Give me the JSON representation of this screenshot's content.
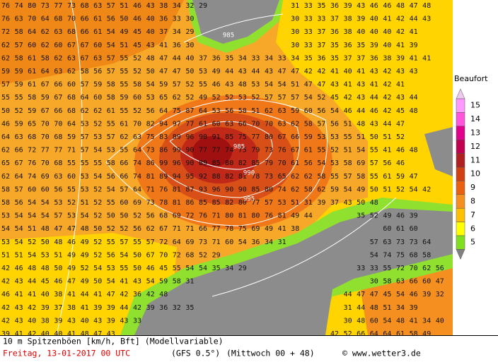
{
  "grid": {
    "rows": [
      [
        76,
        74,
        80,
        73,
        77,
        73,
        68,
        63,
        57,
        51,
        46,
        43,
        38,
        34,
        32,
        29,
        null,
        null,
        null,
        null,
        null,
        null,
        31,
        33,
        35,
        36,
        39,
        43,
        46,
        46,
        48,
        47,
        48
      ],
      [
        76,
        63,
        70,
        64,
        68,
        70,
        66,
        61,
        56,
        50,
        46,
        40,
        36,
        33,
        30,
        null,
        null,
        null,
        null,
        null,
        null,
        null,
        30,
        33,
        33,
        37,
        38,
        39,
        40,
        41,
        42,
        44,
        43
      ],
      [
        72,
        58,
        64,
        62,
        63,
        68,
        66,
        61,
        54,
        49,
        45,
        40,
        37,
        34,
        29,
        null,
        null,
        null,
        null,
        null,
        null,
        null,
        30,
        33,
        37,
        36,
        38,
        40,
        40,
        40,
        42,
        41
      ],
      [
        62,
        57,
        60,
        62,
        60,
        67,
        67,
        60,
        54,
        51,
        45,
        43,
        41,
        36,
        30,
        null,
        null,
        null,
        null,
        null,
        null,
        null,
        30,
        33,
        37,
        35,
        36,
        35,
        39,
        40,
        41,
        39
      ],
      [
        62,
        58,
        61,
        58,
        62,
        63,
        67,
        63,
        57,
        55,
        52,
        48,
        47,
        44,
        40,
        37,
        36,
        35,
        34,
        33,
        34,
        33,
        34,
        35,
        36,
        35,
        37,
        37,
        36,
        38,
        39,
        41,
        41
      ],
      [
        59,
        59,
        61,
        64,
        63,
        62,
        58,
        56,
        57,
        55,
        52,
        50,
        47,
        47,
        50,
        53,
        49,
        44,
        43,
        44,
        43,
        47,
        47,
        42,
        42,
        41,
        40,
        41,
        43,
        42,
        43,
        43
      ],
      [
        57,
        59,
        61,
        67,
        66,
        60,
        57,
        59,
        58,
        55,
        58,
        54,
        59,
        57,
        52,
        55,
        46,
        43,
        48,
        53,
        54,
        54,
        51,
        47,
        47,
        43,
        41,
        43,
        41,
        42,
        41
      ],
      [
        55,
        55,
        58,
        59,
        67,
        68,
        64,
        60,
        58,
        59,
        60,
        53,
        65,
        62,
        52,
        49,
        52,
        52,
        53,
        52,
        57,
        57,
        57,
        54,
        52,
        45,
        42,
        43,
        44,
        42,
        43,
        44
      ],
      [
        50,
        52,
        59,
        67,
        66,
        68,
        62,
        62,
        61,
        55,
        52,
        56,
        64,
        75,
        87,
        64,
        53,
        56,
        58,
        51,
        62,
        63,
        59,
        60,
        56,
        54,
        46,
        44,
        46,
        42,
        45,
        48
      ],
      [
        46,
        59,
        65,
        70,
        70,
        64,
        53,
        52,
        55,
        61,
        70,
        82,
        94,
        97,
        77,
        61,
        60,
        63,
        66,
        70,
        70,
        63,
        62,
        58,
        57,
        56,
        51,
        48,
        43,
        44,
        47
      ],
      [
        64,
        63,
        68,
        70,
        68,
        59,
        57,
        53,
        57,
        62,
        63,
        75,
        83,
        89,
        96,
        90,
        91,
        85,
        75,
        77,
        80,
        67,
        66,
        59,
        53,
        53,
        55,
        51,
        50,
        51,
        52
      ],
      [
        62,
        66,
        72,
        77,
        77,
        71,
        57,
        54,
        53,
        55,
        64,
        73,
        86,
        99,
        90,
        77,
        77,
        74,
        75,
        79,
        73,
        76,
        67,
        61,
        55,
        52,
        51,
        54,
        55,
        41,
        46,
        48
      ],
      [
        65,
        67,
        76,
        70,
        68,
        55,
        55,
        55,
        58,
        66,
        74,
        86,
        99,
        96,
        90,
        89,
        85,
        80,
        82,
        85,
        79,
        70,
        61,
        56,
        54,
        53,
        58,
        69,
        57,
        56,
        46
      ],
      [
        62,
        64,
        74,
        69,
        63,
        60,
        53,
        54,
        56,
        66,
        74,
        81,
        89,
        94,
        95,
        92,
        88,
        82,
        81,
        78,
        73,
        65,
        62,
        62,
        58,
        55,
        57,
        58,
        55,
        61,
        59,
        47
      ],
      [
        58,
        57,
        60,
        60,
        56,
        55,
        53,
        52,
        54,
        57,
        64,
        71,
        76,
        81,
        87,
        93,
        96,
        90,
        90,
        85,
        80,
        74,
        62,
        58,
        62,
        59,
        54,
        49,
        50,
        51,
        52,
        54,
        42
      ],
      [
        58,
        56,
        54,
        54,
        53,
        52,
        51,
        52,
        55,
        60,
        69,
        73,
        78,
        81,
        86,
        85,
        85,
        82,
        80,
        77,
        57,
        53,
        51,
        31,
        39,
        37,
        43,
        50,
        48
      ],
      [
        53,
        54,
        54,
        54,
        57,
        53,
        54,
        52,
        50,
        50,
        52,
        56,
        68,
        69,
        72,
        76,
        71,
        80,
        81,
        80,
        76,
        81,
        49,
        44,
        null,
        null,
        null,
        35,
        52,
        49,
        46,
        39
      ],
      [
        54,
        54,
        51,
        48,
        47,
        47,
        48,
        50,
        52,
        52,
        56,
        62,
        67,
        71,
        71,
        66,
        77,
        78,
        75,
        69,
        49,
        41,
        38,
        null,
        null,
        null,
        null,
        null,
        null,
        60,
        61,
        60
      ],
      [
        53,
        54,
        52,
        50,
        48,
        46,
        49,
        52,
        55,
        57,
        55,
        57,
        72,
        64,
        69,
        73,
        71,
        60,
        54,
        36,
        34,
        31,
        null,
        null,
        null,
        null,
        null,
        null,
        57,
        63,
        73,
        73,
        64
      ],
      [
        51,
        51,
        54,
        53,
        51,
        49,
        49,
        52,
        56,
        54,
        50,
        67,
        70,
        72,
        68,
        52,
        29,
        null,
        null,
        null,
        null,
        null,
        null,
        null,
        null,
        null,
        null,
        null,
        54,
        74,
        75,
        68,
        58
      ],
      [
        42,
        46,
        48,
        48,
        50,
        49,
        52,
        54,
        53,
        55,
        50,
        46,
        45,
        55,
        54,
        54,
        35,
        34,
        29,
        null,
        null,
        null,
        null,
        null,
        null,
        null,
        null,
        33,
        33,
        55,
        72,
        70,
        62,
        56
      ],
      [
        42,
        43,
        44,
        45,
        46,
        47,
        49,
        50,
        54,
        41,
        43,
        54,
        59,
        58,
        31,
        null,
        null,
        null,
        null,
        null,
        null,
        null,
        null,
        null,
        null,
        null,
        null,
        null,
        30,
        58,
        63,
        66,
        60,
        47
      ],
      [
        46,
        41,
        41,
        40,
        38,
        41,
        44,
        41,
        47,
        42,
        36,
        42,
        48,
        null,
        null,
        null,
        null,
        null,
        null,
        null,
        null,
        null,
        null,
        null,
        null,
        null,
        44,
        47,
        47,
        45,
        54,
        46,
        39,
        32
      ],
      [
        42,
        43,
        42,
        39,
        37,
        38,
        41,
        39,
        39,
        44,
        42,
        39,
        36,
        32,
        35,
        null,
        null,
        null,
        null,
        null,
        null,
        null,
        null,
        null,
        null,
        null,
        31,
        44,
        48,
        51,
        34,
        39
      ],
      [
        42,
        43,
        40,
        38,
        39,
        43,
        40,
        43,
        39,
        43,
        33,
        null,
        null,
        null,
        null,
        null,
        null,
        null,
        null,
        null,
        null,
        null,
        null,
        null,
        null,
        null,
        30,
        48,
        60,
        54,
        48,
        41,
        34,
        40
      ],
      [
        39,
        41,
        42,
        40,
        40,
        41,
        48,
        47,
        43,
        null,
        null,
        null,
        null,
        null,
        null,
        null,
        null,
        null,
        null,
        null,
        null,
        null,
        null,
        null,
        null,
        42,
        52,
        66,
        64,
        64,
        61,
        58,
        49
      ]
    ]
  },
  "isobars": [
    985,
    985,
    990,
    995
  ],
  "legend": {
    "title": "Beaufort",
    "levels": [
      15,
      14,
      13,
      12,
      11,
      10,
      9,
      8,
      7,
      6,
      5
    ],
    "colors": [
      "#ff99ff",
      "#ff55dd",
      "#e0008c",
      "#c00050",
      "#b02020",
      "#d04010",
      "#e86010",
      "#f59020",
      "#ffc000",
      "#ffff00",
      "#80e020"
    ],
    "top_color": "#f0c8f0",
    "bottom_color": "#808080"
  },
  "footer": {
    "caption": "10 m Spitzenböen [km/h, Bft] (Modellvariable)",
    "date": "Freitag, 13-01-2017  00 UTC",
    "model": "(GFS 0.5°)",
    "run": "(Mittwoch 00 + 48)",
    "credit": "© www.wetter3.de"
  }
}
